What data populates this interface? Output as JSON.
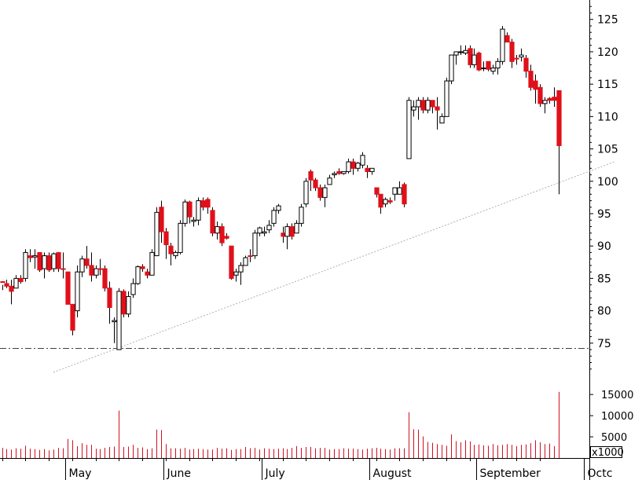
{
  "chart_data": {
    "type": "candlestick",
    "colors": {
      "up_fill": "#ffffff",
      "down_fill": "#e0101a",
      "outline": "#000000",
      "volume": "#d01020",
      "trendline": "#b0b0b0",
      "support": "#404040"
    },
    "y_axis": {
      "min": 70,
      "max": 128,
      "ticks": [
        75,
        80,
        85,
        90,
        95,
        100,
        105,
        110,
        115,
        120,
        125
      ]
    },
    "volume_axis": {
      "ticks": [
        5000,
        10000,
        15000
      ],
      "unit_label": "x1000",
      "max": 18000
    },
    "months": [
      {
        "label": "May",
        "index": 14
      },
      {
        "label": "June",
        "index": 35
      },
      {
        "label": "July",
        "index": 56
      },
      {
        "label": "August",
        "index": 79
      },
      {
        "label": "September",
        "index": 102
      },
      {
        "label": "Octc",
        "index": 125
      }
    ],
    "trendline": {
      "from": {
        "index": 11,
        "value": 70.5
      },
      "to": {
        "index": 131,
        "value": 103
      }
    },
    "support_level": 74.2,
    "candles": [
      [
        84.5,
        84,
        83.2,
        84.4,
        2400,
        true
      ],
      [
        84.2,
        84.8,
        83.5,
        83.8,
        2100,
        true
      ],
      [
        83.8,
        84.8,
        81,
        83,
        2000,
        true
      ],
      [
        83.5,
        85.5,
        83.5,
        85,
        2300,
        false
      ],
      [
        85,
        85.5,
        84.2,
        84.5,
        2200,
        true
      ],
      [
        85,
        89.5,
        84.5,
        89,
        2900,
        false
      ],
      [
        88.5,
        89.5,
        87.5,
        88.2,
        2200,
        true
      ],
      [
        88.3,
        89.5,
        86.5,
        88.5,
        2100,
        false
      ],
      [
        89,
        89,
        86,
        86.3,
        1900,
        true
      ],
      [
        86.5,
        89,
        85,
        88.5,
        2100,
        false
      ],
      [
        88.5,
        89,
        86,
        86.3,
        1800,
        true
      ],
      [
        86.5,
        89,
        86,
        88.8,
        2000,
        false
      ],
      [
        89,
        89,
        86,
        86.5,
        2400,
        true
      ],
      [
        86.5,
        89,
        85,
        86.5,
        2300,
        true
      ],
      [
        86,
        86,
        81,
        81,
        4500,
        true
      ],
      [
        81,
        81,
        76.2,
        77,
        4200,
        true
      ],
      [
        80,
        87,
        79,
        86,
        2800,
        false
      ],
      [
        86,
        88.5,
        85.2,
        88,
        3500,
        false
      ],
      [
        88,
        90,
        86.5,
        87,
        3100,
        true
      ],
      [
        87,
        89,
        84.5,
        85.5,
        3100,
        true
      ],
      [
        85.5,
        87,
        85,
        86.5,
        2200,
        false
      ],
      [
        86.5,
        88,
        85.5,
        86.5,
        2100,
        true
      ],
      [
        86.5,
        87,
        83,
        83.5,
        2400,
        true
      ],
      [
        83.5,
        84.5,
        78,
        80.5,
        2600,
        true
      ],
      [
        78.3,
        79,
        75,
        78.5,
        2700,
        false
      ],
      [
        74,
        83.5,
        74,
        83,
        11200,
        false
      ],
      [
        83,
        83.3,
        79,
        79.5,
        2600,
        true
      ],
      [
        79.5,
        83,
        79,
        82.2,
        2700,
        false
      ],
      [
        82.5,
        85,
        82,
        84.2,
        3100,
        false
      ],
      [
        84.2,
        87,
        84,
        86.8,
        2400,
        false
      ],
      [
        86.8,
        87.2,
        86,
        86.5,
        2500,
        true
      ],
      [
        86,
        86.5,
        85,
        85.5,
        2100,
        true
      ],
      [
        85.5,
        89.5,
        85.5,
        89,
        2300,
        false
      ],
      [
        88.5,
        96,
        88.5,
        95.2,
        6700,
        false
      ],
      [
        96,
        97,
        90.5,
        92.2,
        6600,
        true
      ],
      [
        92.2,
        92.8,
        88,
        90.2,
        3300,
        true
      ],
      [
        90,
        90.5,
        87,
        88.8,
        2300,
        true
      ],
      [
        88.5,
        89.3,
        88,
        89,
        2300,
        false
      ],
      [
        89,
        94,
        88.7,
        93.5,
        2200,
        false
      ],
      [
        93.5,
        97.2,
        93,
        96.8,
        2400,
        false
      ],
      [
        96.8,
        97,
        93.5,
        94.5,
        2000,
        true
      ],
      [
        94,
        94.5,
        93,
        93.8,
        2100,
        false
      ],
      [
        94,
        97.5,
        93.2,
        97,
        2200,
        false
      ],
      [
        97,
        97.5,
        95.5,
        96,
        2100,
        true
      ],
      [
        96,
        97.5,
        95,
        97.2,
        2000,
        true
      ],
      [
        95.5,
        96,
        91.5,
        92,
        2000,
        true
      ],
      [
        92,
        93.8,
        91,
        93,
        2400,
        false
      ],
      [
        93,
        93.5,
        90,
        90.5,
        2200,
        true
      ],
      [
        91.5,
        92,
        91,
        91.2,
        2300,
        true
      ],
      [
        90,
        90,
        84.8,
        85,
        1900,
        true
      ],
      [
        85.5,
        86.5,
        84.5,
        86,
        2100,
        false
      ],
      [
        86,
        87.5,
        84,
        87,
        2100,
        false
      ],
      [
        87,
        88.5,
        87,
        88.2,
        2600,
        false
      ],
      [
        88.5,
        89.5,
        87.5,
        88.5,
        2300,
        true
      ],
      [
        88.5,
        92.5,
        88,
        92,
        2400,
        false
      ],
      [
        92,
        93,
        91.5,
        92.8,
        2000,
        false
      ],
      [
        92,
        93,
        91.5,
        92.2,
        2300,
        false
      ],
      [
        92.5,
        94,
        92,
        93.2,
        2200,
        false
      ],
      [
        93.5,
        96,
        93,
        95.5,
        2100,
        false
      ],
      [
        95.5,
        96.5,
        95,
        96.2,
        2200,
        false
      ],
      [
        92,
        93,
        90.5,
        91.5,
        2300,
        true
      ],
      [
        91.5,
        93.5,
        89.5,
        93,
        2100,
        false
      ],
      [
        93,
        93.5,
        91,
        91.5,
        2400,
        true
      ],
      [
        92,
        94,
        92,
        93.5,
        2800,
        false
      ],
      [
        93.5,
        96.5,
        93,
        96,
        2400,
        false
      ],
      [
        96.5,
        100.5,
        96,
        100,
        2600,
        false
      ],
      [
        101.5,
        101.8,
        98.5,
        100.2,
        2600,
        true
      ],
      [
        100.2,
        100.5,
        98.5,
        99,
        2300,
        true
      ],
      [
        99,
        99.5,
        97,
        97.5,
        2400,
        true
      ],
      [
        97.5,
        99.5,
        96,
        99,
        2400,
        false
      ],
      [
        99.5,
        101,
        99.5,
        100.5,
        2000,
        false
      ],
      [
        101,
        101.5,
        100.5,
        101.2,
        2100,
        false
      ],
      [
        101.5,
        102,
        101,
        101.2,
        2100,
        true
      ],
      [
        101.2,
        101.5,
        101,
        101.5,
        2300,
        false
      ],
      [
        101.5,
        103.5,
        101.2,
        103,
        2200,
        false
      ],
      [
        103,
        103.5,
        101,
        102,
        2200,
        true
      ],
      [
        102,
        103,
        101.5,
        102.8,
        2100,
        false
      ],
      [
        102.5,
        104.5,
        102,
        104,
        2000,
        false
      ],
      [
        102,
        102.5,
        100.5,
        101.5,
        2200,
        true
      ],
      [
        101.5,
        102,
        101,
        102,
        2300,
        false
      ],
      [
        99,
        99,
        97.5,
        98,
        2400,
        true
      ],
      [
        98,
        98,
        95,
        96,
        2200,
        true
      ],
      [
        96.5,
        97.5,
        96,
        97.2,
        2100,
        false
      ],
      [
        97,
        97.5,
        96.5,
        96.8,
        2000,
        true
      ],
      [
        98,
        99,
        97,
        99,
        2300,
        false
      ],
      [
        98,
        100,
        98,
        99,
        2300,
        false
      ],
      [
        99.5,
        99.8,
        96,
        96.5,
        2300,
        true
      ],
      [
        103.5,
        113,
        103.5,
        112.5,
        10800,
        false
      ],
      [
        111,
        112.5,
        110,
        111.5,
        6800,
        false
      ],
      [
        111.5,
        113,
        109.5,
        112.5,
        6700,
        false
      ],
      [
        112.5,
        113,
        110.5,
        111,
        5100,
        true
      ],
      [
        111,
        113,
        110.5,
        112.5,
        3800,
        false
      ],
      [
        112.5,
        112.5,
        110.5,
        111.5,
        3600,
        true
      ],
      [
        111.5,
        113,
        108,
        111,
        3300,
        true
      ],
      [
        109,
        110.5,
        109,
        110,
        3100,
        false
      ],
      [
        110,
        116,
        110,
        115.5,
        2900,
        false
      ],
      [
        115.5,
        119.5,
        115,
        119.5,
        5600,
        false
      ],
      [
        119.5,
        120,
        118,
        120,
        4000,
        false
      ],
      [
        120,
        121,
        119.5,
        120,
        3700,
        false
      ],
      [
        120.2,
        121,
        119.5,
        119.8,
        4200,
        false
      ],
      [
        120.5,
        121,
        117.5,
        118,
        3900,
        true
      ],
      [
        118,
        120.5,
        117.5,
        119.5,
        3100,
        false
      ],
      [
        119.8,
        120,
        117,
        117.2,
        3200,
        true
      ],
      [
        117.5,
        118.5,
        117,
        117.5,
        3000,
        false
      ],
      [
        118.5,
        118.5,
        117,
        117.3,
        2900,
        true
      ],
      [
        117,
        118,
        116.5,
        117.5,
        3300,
        false
      ],
      [
        117.5,
        119,
        116.5,
        118.5,
        3000,
        false
      ],
      [
        118.5,
        124,
        118,
        123.5,
        3100,
        false
      ],
      [
        122.5,
        123,
        121.5,
        121.5,
        3300,
        true
      ],
      [
        121.5,
        122,
        117.5,
        118.5,
        3100,
        true
      ],
      [
        119,
        119.5,
        118,
        119,
        2800,
        true
      ],
      [
        119.5,
        120.5,
        118.5,
        119.2,
        3100,
        false
      ],
      [
        119,
        119.5,
        116,
        117,
        3200,
        true
      ],
      [
        117,
        118,
        114,
        114.5,
        3500,
        true
      ],
      [
        115.5,
        116.5,
        112,
        114.2,
        4200,
        true
      ],
      [
        114.5,
        115,
        111.5,
        112,
        3700,
        true
      ],
      [
        112,
        113,
        110.5,
        112.5,
        3300,
        false
      ],
      [
        112.8,
        113,
        112,
        112.5,
        3400,
        true
      ],
      [
        113,
        114.5,
        111.5,
        112.5,
        2800,
        true
      ],
      [
        114,
        114,
        98,
        105.5,
        15600,
        true
      ]
    ]
  }
}
